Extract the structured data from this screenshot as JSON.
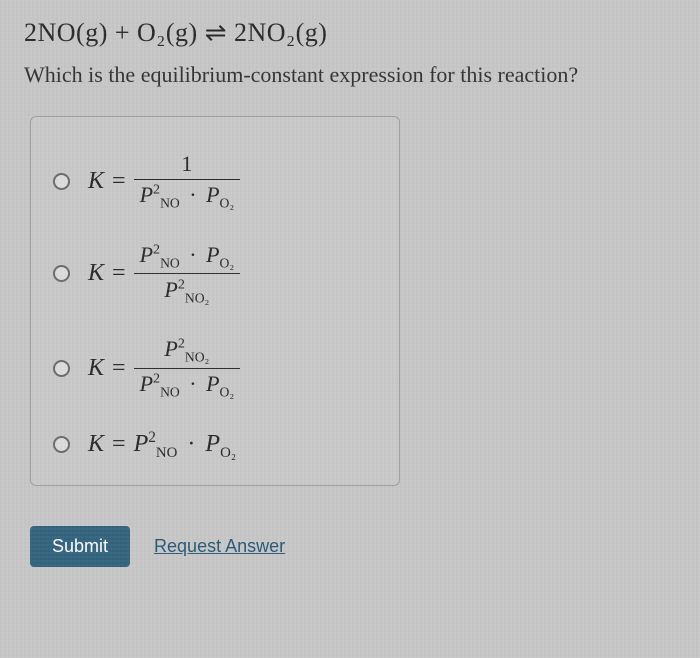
{
  "equation_text": "2NO(g) + O₂(g)  ⇌  2NO₂(g)",
  "question_text": "Which is the equilibrium-constant expression for this reaction?",
  "options": {
    "opt1": {
      "K": "K",
      "eq": "=",
      "num": "1",
      "den_p1": "P",
      "den_p1_sup": "2",
      "den_p1_sub": "NO",
      "dot": "·",
      "den_p2": "P",
      "den_p2_sub": "O₂"
    },
    "opt2": {
      "K": "K",
      "eq": "=",
      "num_p1": "P",
      "num_p1_sup": "2",
      "num_p1_sub": "NO",
      "dot": "·",
      "num_p2": "P",
      "num_p2_sub": "O₂",
      "den_p1": "P",
      "den_p1_sup": "2",
      "den_p1_sub": "NO₂"
    },
    "opt3": {
      "K": "K",
      "eq": "=",
      "num_p1": "P",
      "num_p1_sup": "2",
      "num_p1_sub": "NO₂",
      "den_p1": "P",
      "den_p1_sup": "2",
      "den_p1_sub": "NO",
      "dot": "·",
      "den_p2": "P",
      "den_p2_sub": "O₂"
    },
    "opt4": {
      "K": "K",
      "eq": "=",
      "p1": "P",
      "p1_sup": "2",
      "p1_sub": "NO",
      "dot": "·",
      "p2": "P",
      "p2_sub": "O₂"
    }
  },
  "buttons": {
    "submit": "Submit",
    "request": "Request Answer"
  },
  "colors": {
    "page_bg": "#c7c7c7",
    "text": "#2a2a2a",
    "card_border": "#9e9e9e",
    "btn_bg": "#34647e",
    "btn_text": "#ffffff",
    "link": "#2a5a78"
  },
  "typography": {
    "equation_fontsize_pt": 20,
    "prompt_fontsize_pt": 16,
    "option_fontsize_pt": 18,
    "font_family": "Georgia, serif"
  }
}
